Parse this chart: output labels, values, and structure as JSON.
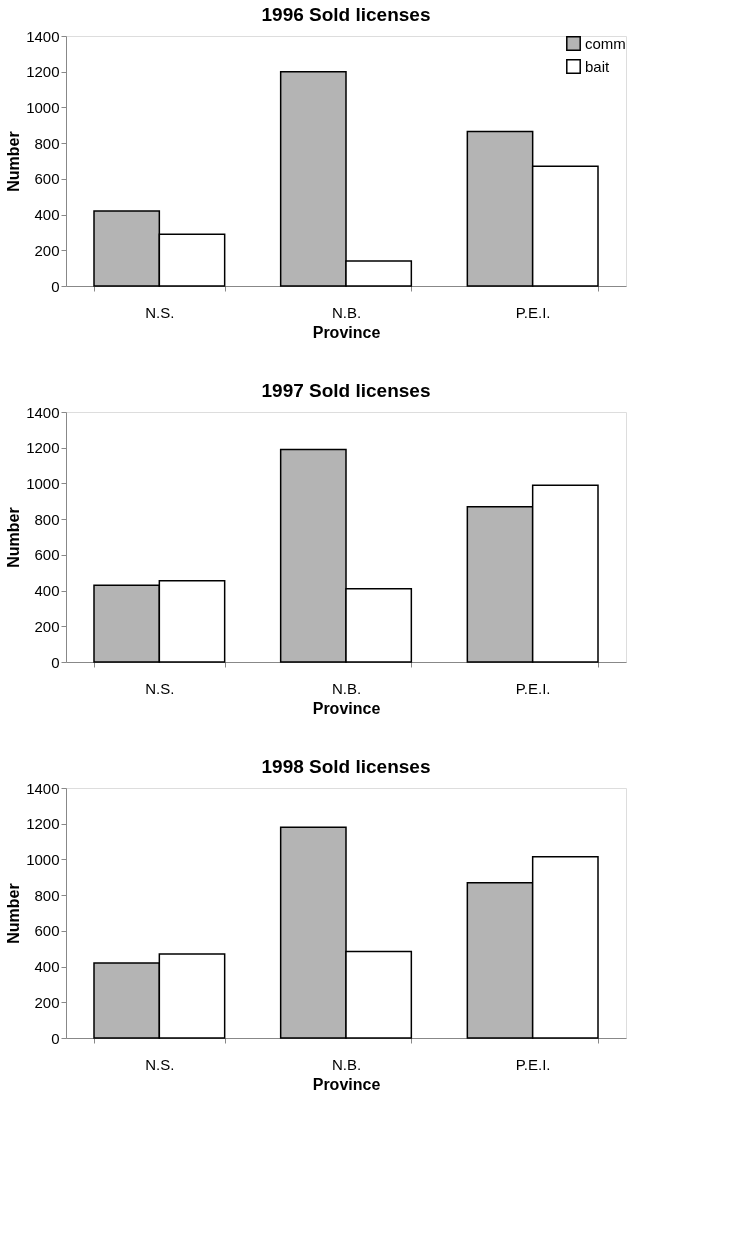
{
  "chart_data": [
    {
      "type": "bar",
      "title": "1996 Sold licenses",
      "xlabel": "Province",
      "ylabel": "Number",
      "categories": [
        "N.S.",
        "N.B.",
        "P.E.I."
      ],
      "series": [
        {
          "name": "comm",
          "color": "#b4b4b4",
          "values": [
            420,
            1200,
            865
          ]
        },
        {
          "name": "bait",
          "color": "#ffffff",
          "values": [
            290,
            140,
            670
          ]
        }
      ],
      "ylim": [
        0,
        1400
      ],
      "yticks": [
        0,
        200,
        400,
        600,
        800,
        1000,
        1200,
        1400
      ],
      "grid": false,
      "legend": "top right"
    },
    {
      "type": "bar",
      "title": "1997 Sold licenses",
      "xlabel": "Province",
      "ylabel": "Number",
      "categories": [
        "N.S.",
        "N.B.",
        "P.E.I."
      ],
      "series": [
        {
          "color": "#b4b4b4",
          "values": [
            430,
            1190,
            870
          ]
        },
        {
          "color": "#ffffff",
          "values": [
            455,
            410,
            990
          ]
        }
      ],
      "ylim": [
        0,
        1400
      ],
      "yticks": [
        0,
        200,
        400,
        600,
        800,
        1000,
        1200,
        1400
      ],
      "grid": false
    },
    {
      "type": "bar",
      "title": "1998 Sold licenses",
      "xlabel": "Province",
      "ylabel": "Number",
      "categories": [
        "N.S.",
        "N.B.",
        "P.E.I."
      ],
      "series": [
        {
          "color": "#b4b4b4",
          "values": [
            420,
            1180,
            870
          ]
        },
        {
          "color": "#ffffff",
          "values": [
            470,
            485,
            1015
          ]
        }
      ],
      "ylim": [
        0,
        1400
      ],
      "yticks": [
        0,
        200,
        400,
        600,
        800,
        1000,
        1200,
        1400
      ],
      "grid": false
    }
  ]
}
